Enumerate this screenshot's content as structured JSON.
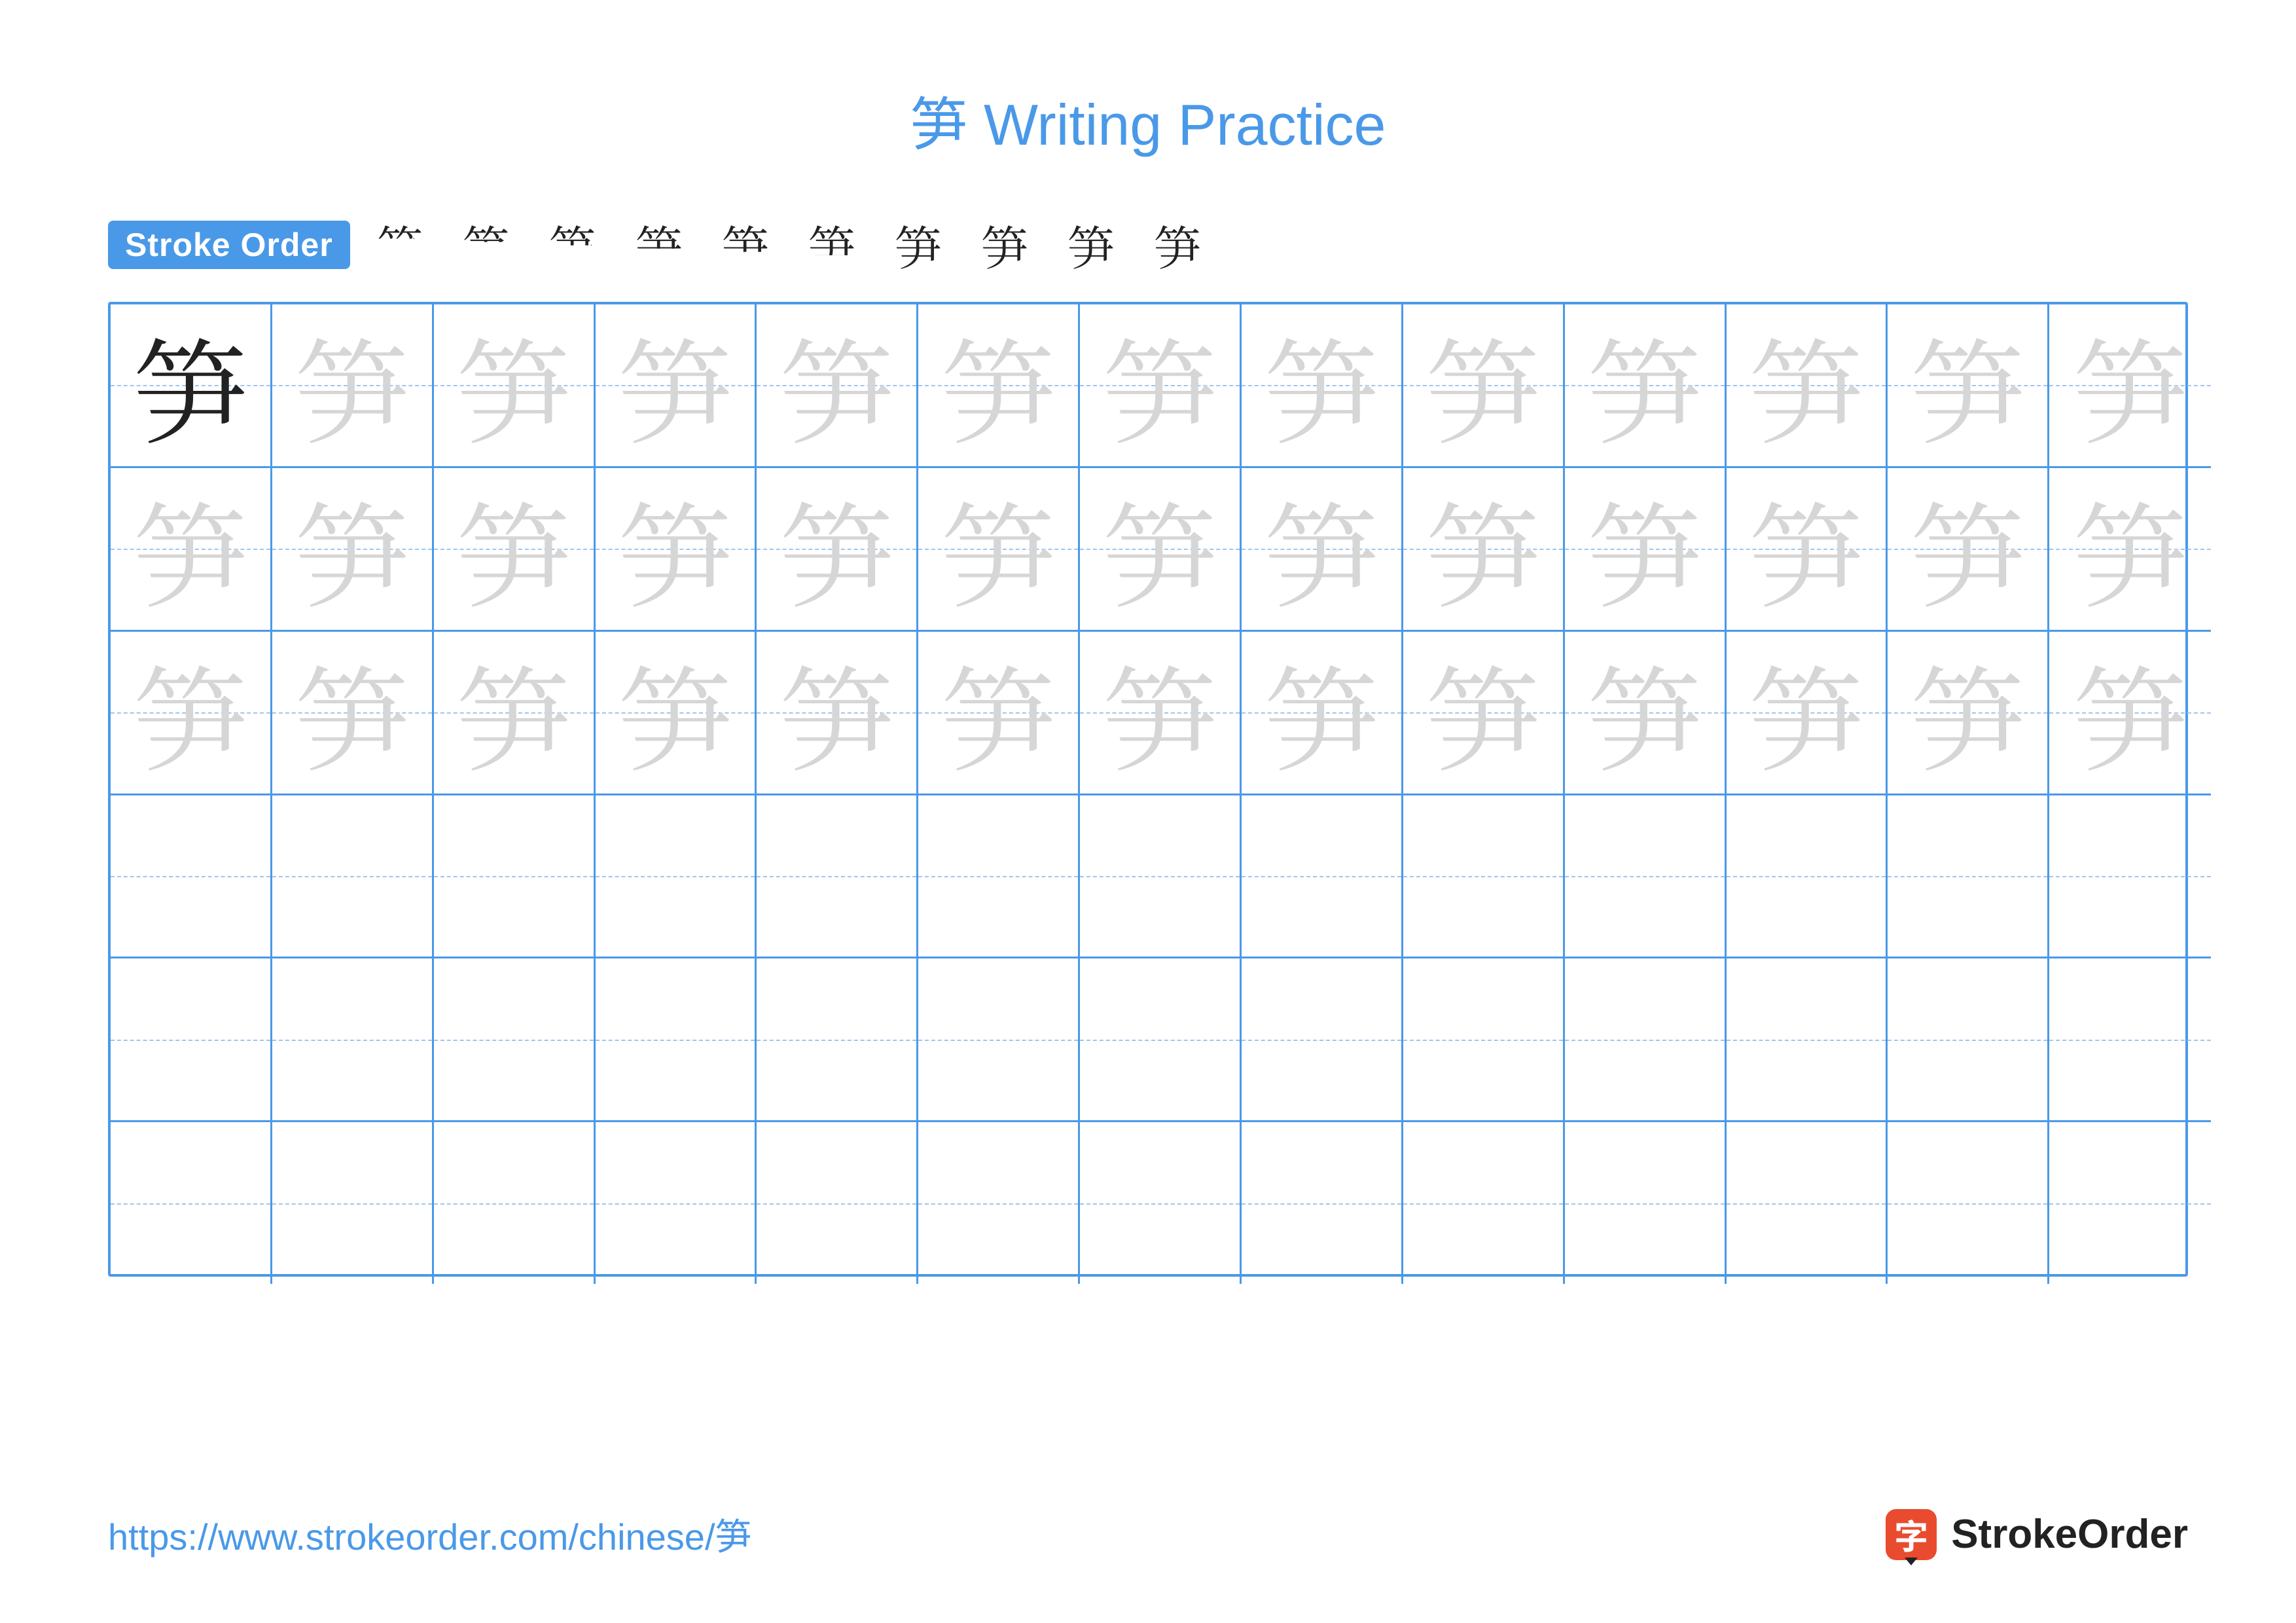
{
  "title_color": "#4a99e8",
  "title": "笋 Writing Practice",
  "stroke_label": "Stroke Order",
  "stroke_label_bg": "#4a99e8",
  "stroke_label_color": "#ffffff",
  "character": "笋",
  "stroke_count": 10,
  "stroke_sequence": [
    "丿",
    "𠂉",
    "⺮",
    "⺮",
    "⺮",
    "⺮",
    "笋",
    "笋",
    "笋",
    "笋"
  ],
  "stroke_display_char": "笋",
  "grid": {
    "rows": 6,
    "cols": 13,
    "border_color": "#4a99e8",
    "guide_color": "#9fc6ef",
    "ghost_rows": 3,
    "solid_cells": [
      [
        0,
        0
      ]
    ],
    "ghost_color": "#d6d6d6",
    "solid_color": "#222222"
  },
  "footer": {
    "url": "https://www.strokeorder.com/chinese/笋",
    "url_color": "#4a99e8",
    "brand_icon_char": "字",
    "brand_icon_bg": "#e94b2f",
    "brand_text": "StrokeOrder",
    "brand_text_color": "#222222"
  }
}
